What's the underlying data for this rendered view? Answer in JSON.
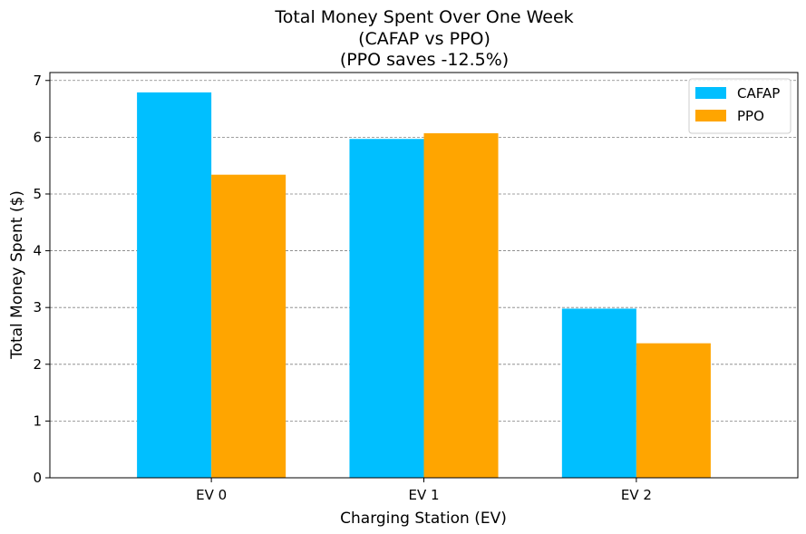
{
  "chart_data": {
    "type": "bar",
    "title_lines": [
      "Total Money Spent Over One Week",
      "(CAFAP vs PPO)",
      "(PPO saves -12.5%)"
    ],
    "xlabel": "Charging Station (EV)",
    "ylabel": "Total Money Spent ($)",
    "categories": [
      "EV 0",
      "EV 1",
      "EV 2"
    ],
    "series": [
      {
        "name": "CAFAP",
        "color": "#00bfff",
        "values": [
          6.79,
          5.97,
          2.98
        ]
      },
      {
        "name": "PPO",
        "color": "#ffa500",
        "values": [
          5.34,
          6.07,
          2.37
        ]
      }
    ],
    "ylim": [
      0,
      7.14
    ],
    "yticks": [
      0,
      1,
      2,
      3,
      4,
      5,
      6,
      7
    ],
    "grid": "y-dashed",
    "legend_position": "top-right"
  }
}
